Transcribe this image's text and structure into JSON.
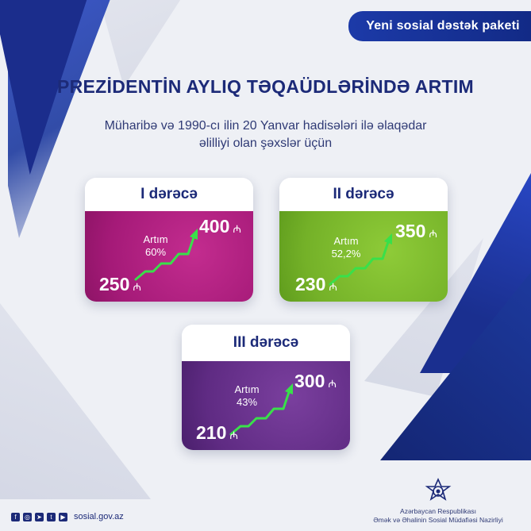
{
  "badge": "Yeni sosial dəstək paketi",
  "title": "PREZİDENTİN AYLIQ TƏQAÜDLƏRİNDƏ ARTIM",
  "subtitle_line1": "Müharibə və 1990-cı ilin 20 Yanvar hadisələri ilə əlaqədar",
  "subtitle_line2": "əlilliyi olan şəxslər üçün",
  "currency_symbol": "₼",
  "cards": [
    {
      "heading": "I dərəcə",
      "old_value": "250",
      "new_value": "400",
      "artim_label": "Artım",
      "artim_value": "60%",
      "color": "#a51a78"
    },
    {
      "heading": "II dərəcə",
      "old_value": "230",
      "new_value": "350",
      "artim_label": "Artım",
      "artim_value": "52,2%",
      "color": "#74b128"
    },
    {
      "heading": "III dərəcə",
      "old_value": "210",
      "new_value": "300",
      "artim_label": "Artım",
      "artim_value": "43%",
      "color": "#5f2b83"
    }
  ],
  "footer": {
    "social_icons": [
      "facebook-icon",
      "instagram-icon",
      "telegram-icon",
      "twitter-icon",
      "youtube-icon"
    ],
    "website": "sosial.gov.az"
  },
  "ministry": {
    "line1": "Azərbaycan Respublikası",
    "line2": "Əmək və Əhalinin Sosial Müdafiəsi Nazirliyi"
  },
  "colors": {
    "brand_blue": "#1c2a78",
    "accent_arrow": "#39e04a"
  }
}
